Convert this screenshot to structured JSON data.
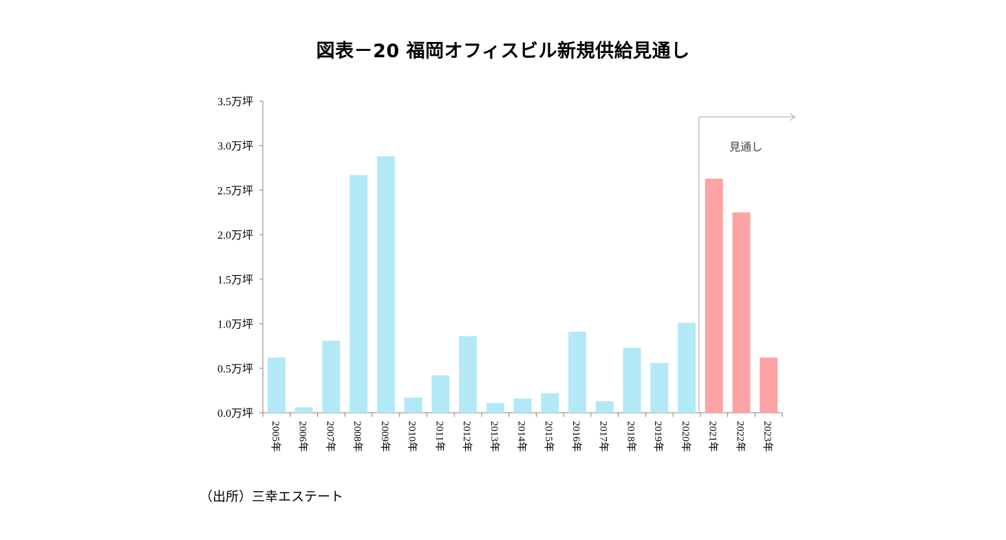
{
  "title": "図表－20 福岡オフィスビル新規供給見通し",
  "source": "（出所）三幸エステート",
  "colors": {
    "actual": "#b3e9f7",
    "forecast": "#fda3a3",
    "axis": "#808080"
  },
  "chart_data": {
    "type": "bar",
    "title": "図表－20 福岡オフィスビル新規供給見通し",
    "xlabel": "",
    "ylabel": "",
    "ylim": [
      0,
      3.5
    ],
    "y_ticks": [
      "0.0万坪",
      "0.5万坪",
      "1.0万坪",
      "1.5万坪",
      "2.0万坪",
      "2.5万坪",
      "3.0万坪",
      "3.5万坪"
    ],
    "categories": [
      "2005年",
      "2006年",
      "2007年",
      "2008年",
      "2009年",
      "2010年",
      "2011年",
      "2012年",
      "2013年",
      "2014年",
      "2015年",
      "2016年",
      "2017年",
      "2018年",
      "2019年",
      "2020年",
      "2021年",
      "2022年",
      "2023年"
    ],
    "values": [
      0.62,
      0.06,
      0.81,
      2.67,
      2.88,
      0.17,
      0.42,
      0.86,
      0.11,
      0.16,
      0.22,
      0.91,
      0.13,
      0.73,
      0.56,
      1.01,
      2.63,
      2.25,
      0.62
    ],
    "forecast_start_index": 16,
    "forecast_label": "見通し",
    "grid": false
  }
}
